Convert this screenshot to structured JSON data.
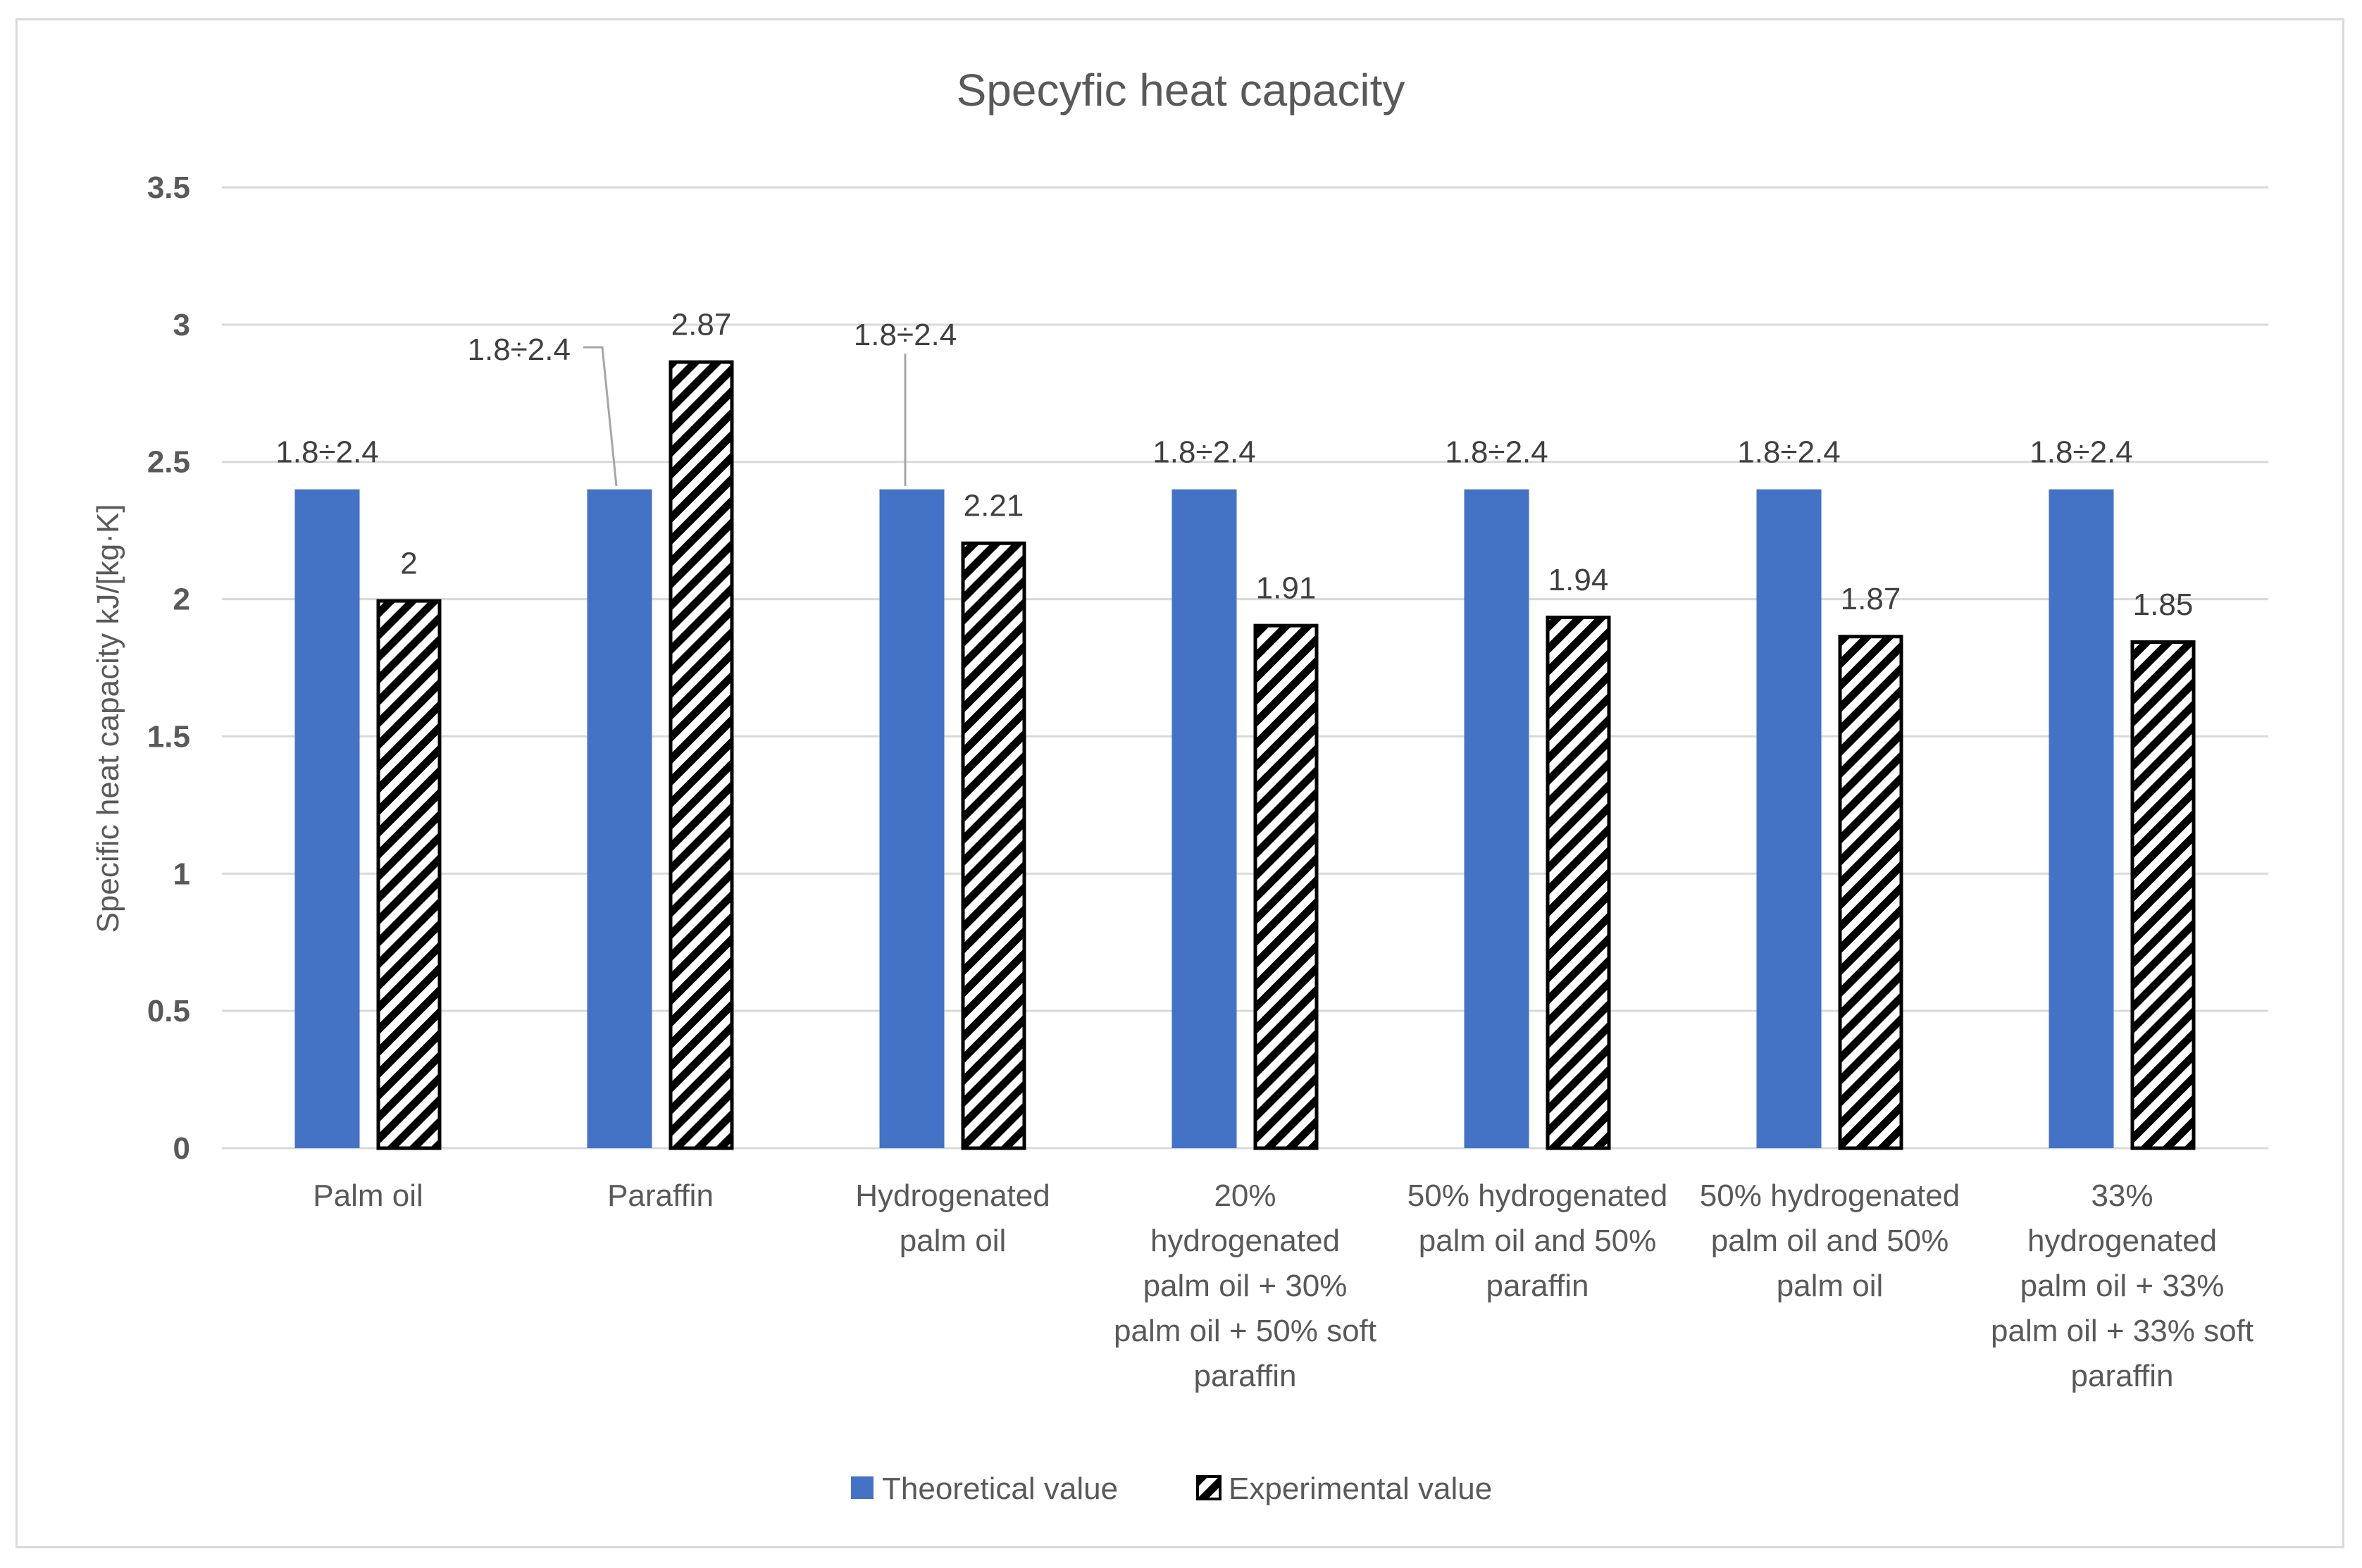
{
  "chart_data": {
    "type": "bar",
    "title": "Specyfic heat capacity",
    "xlabel": "",
    "ylabel": "Specific heat capacity kJ/[kg·K]",
    "ylim": [
      0,
      3.5
    ],
    "yticks": [
      0,
      0.5,
      1,
      1.5,
      2,
      2.5,
      3,
      3.5
    ],
    "ytick_labels": [
      "0",
      "0.5",
      "1",
      "1.5",
      "2",
      "2.5",
      "3",
      "3.5"
    ],
    "grid": true,
    "legend_position": "bottom",
    "categories": [
      [
        "Palm oil"
      ],
      [
        "Paraffin"
      ],
      [
        "Hydrogenated",
        "palm oil"
      ],
      [
        "20%",
        "hydrogenated",
        "palm oil + 30%",
        "palm oil + 50% soft",
        "paraffin"
      ],
      [
        "50% hydrogenated",
        "palm oil and 50%",
        "paraffin"
      ],
      [
        "50% hydrogenated",
        "palm oil and 50%",
        "palm oil"
      ],
      [
        "33%",
        "hydrogenated",
        "palm oil + 33%",
        "palm oil + 33% soft",
        "paraffin"
      ]
    ],
    "series": [
      {
        "name": "Theoretical value",
        "color": "#4472c4",
        "pattern": "solid",
        "values": [
          2.4,
          2.4,
          2.4,
          2.4,
          2.4,
          2.4,
          2.4
        ],
        "labels": [
          "1.8÷2.4",
          "1.8÷2.4",
          "1.8÷2.4",
          "1.8÷2.4",
          "1.8÷2.4",
          "1.8÷2.4",
          "1.8÷2.4"
        ]
      },
      {
        "name": "Experimental value",
        "color": "#000000",
        "pattern": "diagonal-hatch",
        "values": [
          2,
          2.87,
          2.21,
          1.91,
          1.94,
          1.87,
          1.85
        ],
        "labels": [
          "2",
          "2.87",
          "2.21",
          "1.91",
          "1.94",
          "1.87",
          "1.85"
        ]
      }
    ]
  }
}
